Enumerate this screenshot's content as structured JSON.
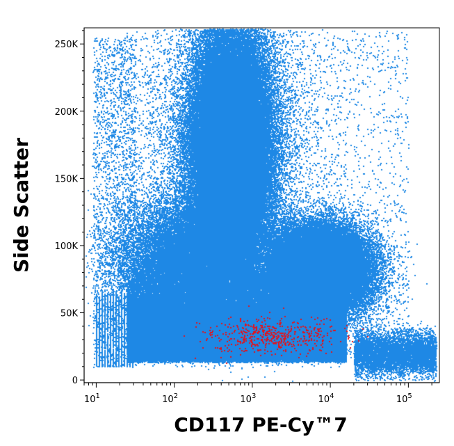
{
  "chart_data": {
    "type": "scatter",
    "title": "",
    "xlabel": "CD117 PE-Cy™7",
    "ylabel": "Side Scatter",
    "x_scale": "log",
    "x_range": [
      7,
      250000
    ],
    "y_range": [
      -2000,
      262000
    ],
    "x_tick_labels": [
      {
        "value": 10,
        "base": "10",
        "exp": "1"
      },
      {
        "value": 100,
        "base": "10",
        "exp": "2"
      },
      {
        "value": 1000,
        "base": "10",
        "exp": "3"
      },
      {
        "value": 10000,
        "base": "10",
        "exp": "4"
      },
      {
        "value": 100000,
        "base": "10",
        "exp": "5"
      }
    ],
    "y_tick_labels": [
      {
        "value": 0,
        "label": "0"
      },
      {
        "value": 50000,
        "label": "50K"
      },
      {
        "value": 100000,
        "label": "100K"
      },
      {
        "value": 150000,
        "label": "150K"
      },
      {
        "value": 200000,
        "label": "200K"
      },
      {
        "value": 250000,
        "label": "250K"
      }
    ],
    "grid": false,
    "legend": "none",
    "series": [
      {
        "color": "#1e88e5",
        "populations": [
          {
            "x_range": [
              150,
              3000
            ],
            "y_range": [
              100000,
              262000
            ],
            "density": "dense"
          },
          {
            "x_range": [
              10,
              30000
            ],
            "y_range": [
              10000,
              100000
            ],
            "density": "dense"
          },
          {
            "x_range": [
              10,
              30
            ],
            "y_range": [
              10000,
              65000
            ],
            "density": "vertical streaks"
          },
          {
            "x_range": [
              30000,
              250000
            ],
            "y_range": [
              15000,
              50000
            ],
            "density": "sparse"
          }
        ]
      },
      {
        "color": "#e0141e",
        "populations": [
          {
            "x_range": [
              100,
              60000
            ],
            "y_range": [
              20000,
              50000
            ],
            "density": "sparse"
          }
        ]
      }
    ]
  }
}
